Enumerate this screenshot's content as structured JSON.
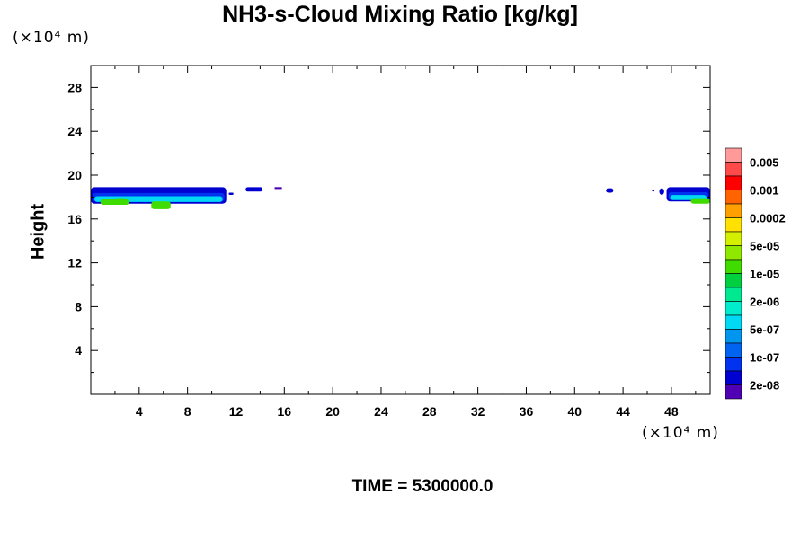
{
  "chart_data": {
    "type": "contour",
    "title": "NH3-s-Cloud Mixing Ratio [kg/kg]",
    "ylabel": "Height",
    "x_unit": "(×10⁴ m)",
    "y_unit": "(×10⁴ m)",
    "xlim": [
      0,
      51.2
    ],
    "ylim": [
      0,
      30
    ],
    "x_ticks": [
      4,
      8,
      12,
      16,
      20,
      24,
      28,
      32,
      36,
      40,
      44,
      48
    ],
    "y_ticks": [
      4,
      8,
      12,
      16,
      20,
      24,
      28
    ],
    "time_label": "TIME = 5300000.0",
    "colorbar": {
      "labels": [
        "0.005",
        "0.001",
        "0.0002",
        "5e-05",
        "1e-05",
        "2e-06",
        "5e-07",
        "1e-07",
        "2e-08"
      ],
      "colors": [
        "#ff9a9a",
        "#ff4a4a",
        "#ff0000",
        "#ff6400",
        "#ffa000",
        "#ffe000",
        "#d4f000",
        "#8ee800",
        "#40dc00",
        "#00d040",
        "#00e890",
        "#00eccc",
        "#00d8f4",
        "#0096f0",
        "#0064f0",
        "#0032f0",
        "#0000d0",
        "#5000b4"
      ]
    },
    "cloud_regions": [
      {
        "x": [
          0,
          11.2
        ],
        "y": [
          17.4,
          18.9
        ],
        "note": "main layer"
      },
      {
        "x": [
          11.4,
          11.8
        ],
        "y": [
          18.2,
          18.4
        ]
      },
      {
        "x": [
          12.8,
          14.2
        ],
        "y": [
          18.5,
          18.9
        ]
      },
      {
        "x": [
          15.2,
          15.8
        ],
        "y": [
          18.8,
          18.9
        ]
      },
      {
        "x": [
          42.6,
          43.2
        ],
        "y": [
          18.4,
          18.8
        ]
      },
      {
        "x": [
          46.4,
          46.6
        ],
        "y": [
          18.5,
          18.7
        ]
      },
      {
        "x": [
          47.0,
          47.4
        ],
        "y": [
          18.2,
          18.8
        ]
      },
      {
        "x": [
          47.6,
          51.2
        ],
        "y": [
          17.6,
          18.9
        ]
      }
    ]
  }
}
